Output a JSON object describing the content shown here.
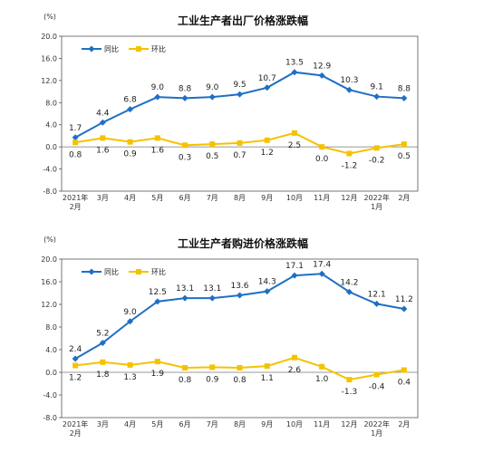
{
  "chart_data": [
    {
      "type": "line",
      "title": "工业生产者出厂价格涨跌幅",
      "ylabel": "(%)",
      "ylim": [
        -8.0,
        20.0
      ],
      "yticks": [
        "20.0",
        "16.0",
        "12.0",
        "8.0",
        "4.0",
        "0.0",
        "-4.0",
        "-8.0"
      ],
      "categories": [
        "2021年\n2月",
        "3月",
        "4月",
        "5月",
        "6月",
        "7月",
        "8月",
        "9月",
        "10月",
        "11月",
        "12月",
        "2022年\n1月",
        "2月"
      ],
      "legend_position": "top-left",
      "series": [
        {
          "name": "同比",
          "color": "#1f6fc4",
          "marker": "diamond",
          "values": [
            1.7,
            4.4,
            6.8,
            9.0,
            8.8,
            9.0,
            9.5,
            10.7,
            13.5,
            12.9,
            10.3,
            9.1,
            8.8
          ],
          "labels": [
            "1.7",
            "4.4",
            "6.8",
            "9.0",
            "8.8",
            "9.0",
            "9.5",
            "10.7",
            "13.5",
            "12.9",
            "10.3",
            "9.1",
            "8.8"
          ]
        },
        {
          "name": "环比",
          "color": "#f5c200",
          "marker": "square",
          "values": [
            0.8,
            1.6,
            0.9,
            1.6,
            0.3,
            0.5,
            0.7,
            1.2,
            2.5,
            0.0,
            -1.2,
            -0.2,
            0.5
          ],
          "labels": [
            "0.8",
            "1.6",
            "0.9",
            "1.6",
            "0.3",
            "0.5",
            "0.7",
            "1.2",
            "2.5",
            "0.0",
            "-1.2",
            "-0.2",
            "0.5"
          ]
        }
      ]
    },
    {
      "type": "line",
      "title": "工业生产者购进价格涨跌幅",
      "ylabel": "(%)",
      "ylim": [
        -8.0,
        20.0
      ],
      "yticks": [
        "20.0",
        "16.0",
        "12.0",
        "8.0",
        "4.0",
        "0.0",
        "-4.0",
        "-8.0"
      ],
      "categories": [
        "2021年\n2月",
        "3月",
        "4月",
        "5月",
        "6月",
        "7月",
        "8月",
        "9月",
        "10月",
        "11月",
        "12月",
        "2022年\n1月",
        "2月"
      ],
      "legend_position": "top-left",
      "series": [
        {
          "name": "同比",
          "color": "#1f6fc4",
          "marker": "diamond",
          "values": [
            2.4,
            5.2,
            9.0,
            12.5,
            13.1,
            13.1,
            13.6,
            14.3,
            17.1,
            17.4,
            14.2,
            12.1,
            11.2
          ],
          "labels": [
            "2.4",
            "5.2",
            "9.0",
            "12.5",
            "13.1",
            "13.1",
            "13.6",
            "14.3",
            "17.1",
            "17.4",
            "14.2",
            "12.1",
            "11.2"
          ]
        },
        {
          "name": "环比",
          "color": "#f5c200",
          "marker": "square",
          "values": [
            1.2,
            1.8,
            1.3,
            1.9,
            0.8,
            0.9,
            0.8,
            1.1,
            2.6,
            1.0,
            -1.3,
            -0.4,
            0.4
          ],
          "labels": [
            "1.2",
            "1.8",
            "1.3",
            "1.9",
            "0.8",
            "0.9",
            "0.8",
            "1.1",
            "2.6",
            "1.0",
            "-1.3",
            "-0.4",
            "0.4"
          ]
        }
      ]
    }
  ]
}
